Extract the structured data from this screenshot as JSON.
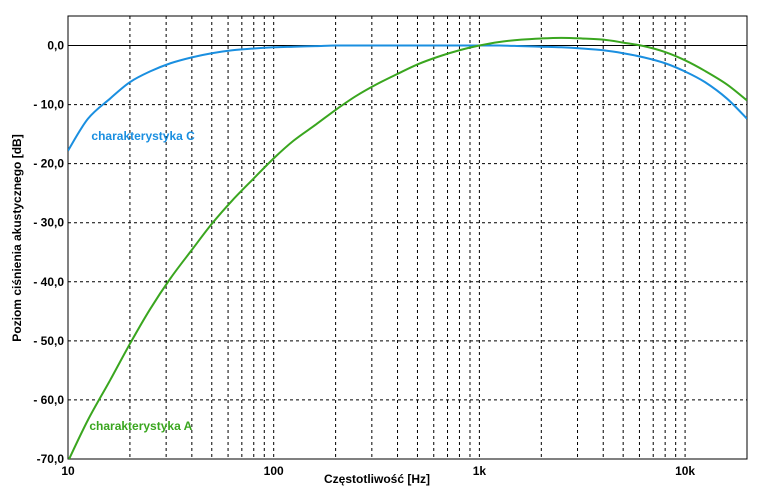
{
  "chart_data": {
    "type": "line",
    "xscale": "log",
    "xlim": [
      10,
      20000
    ],
    "ylim": [
      -70,
      5
    ],
    "grid": true,
    "grid_style": "dashed",
    "xlabel": "Częstotliwość [Hz]",
    "ylabel": "Poziom ciśnienia akustycznego [dB]",
    "x_ticks": [
      {
        "value": 10,
        "label": "10"
      },
      {
        "value": 100,
        "label": "100"
      },
      {
        "value": 1000,
        "label": "1k"
      },
      {
        "value": 10000,
        "label": "10k"
      }
    ],
    "y_ticks": [
      {
        "value": 0,
        "label": "0,0"
      },
      {
        "value": -10,
        "label": "- 10,0"
      },
      {
        "value": -20,
        "label": "- 20,0"
      },
      {
        "value": -30,
        "label": "- 30,0"
      },
      {
        "value": -40,
        "label": "- 40,0"
      },
      {
        "value": -50,
        "label": "- 50,0"
      },
      {
        "value": -60,
        "label": "- 60,0"
      },
      {
        "value": -70,
        "label": "-70,0"
      }
    ],
    "series": [
      {
        "name": "charakterystyka C",
        "color": "#1a8fe0",
        "x": [
          10,
          12.5,
          16,
          20,
          25,
          31.5,
          40,
          50,
          63,
          80,
          100,
          125,
          160,
          200,
          250,
          315,
          400,
          500,
          630,
          800,
          1000,
          1250,
          1600,
          2000,
          2500,
          3150,
          4000,
          5000,
          6300,
          8000,
          10000,
          12500,
          16000,
          20000
        ],
        "y": [
          -17.8,
          -12.4,
          -9.0,
          -6.2,
          -4.4,
          -3.0,
          -2.0,
          -1.3,
          -0.8,
          -0.5,
          -0.3,
          -0.2,
          -0.1,
          0.0,
          0.0,
          0.0,
          0.0,
          0.0,
          0.0,
          0.0,
          0.0,
          0.0,
          -0.1,
          -0.2,
          -0.3,
          -0.5,
          -0.8,
          -1.3,
          -2.0,
          -3.0,
          -4.4,
          -6.2,
          -9.0,
          -12.4
        ]
      },
      {
        "name": "charakterystyka A",
        "color": "#3aa61f",
        "x": [
          10,
          12.5,
          16,
          20,
          25,
          31.5,
          40,
          50,
          63,
          80,
          100,
          125,
          160,
          200,
          250,
          315,
          400,
          500,
          630,
          800,
          1000,
          1250,
          1600,
          2000,
          2500,
          3150,
          4000,
          5000,
          6300,
          8000,
          10000,
          12500,
          16000,
          20000
        ],
        "y": [
          -70.4,
          -63.4,
          -56.7,
          -50.5,
          -44.7,
          -39.4,
          -34.6,
          -30.2,
          -26.2,
          -22.5,
          -19.1,
          -16.1,
          -13.4,
          -10.9,
          -8.6,
          -6.6,
          -4.8,
          -3.2,
          -1.9,
          -0.8,
          0.0,
          0.6,
          1.0,
          1.2,
          1.3,
          1.2,
          1.0,
          0.5,
          -0.1,
          -1.1,
          -2.5,
          -4.3,
          -6.6,
          -9.3
        ]
      }
    ]
  }
}
